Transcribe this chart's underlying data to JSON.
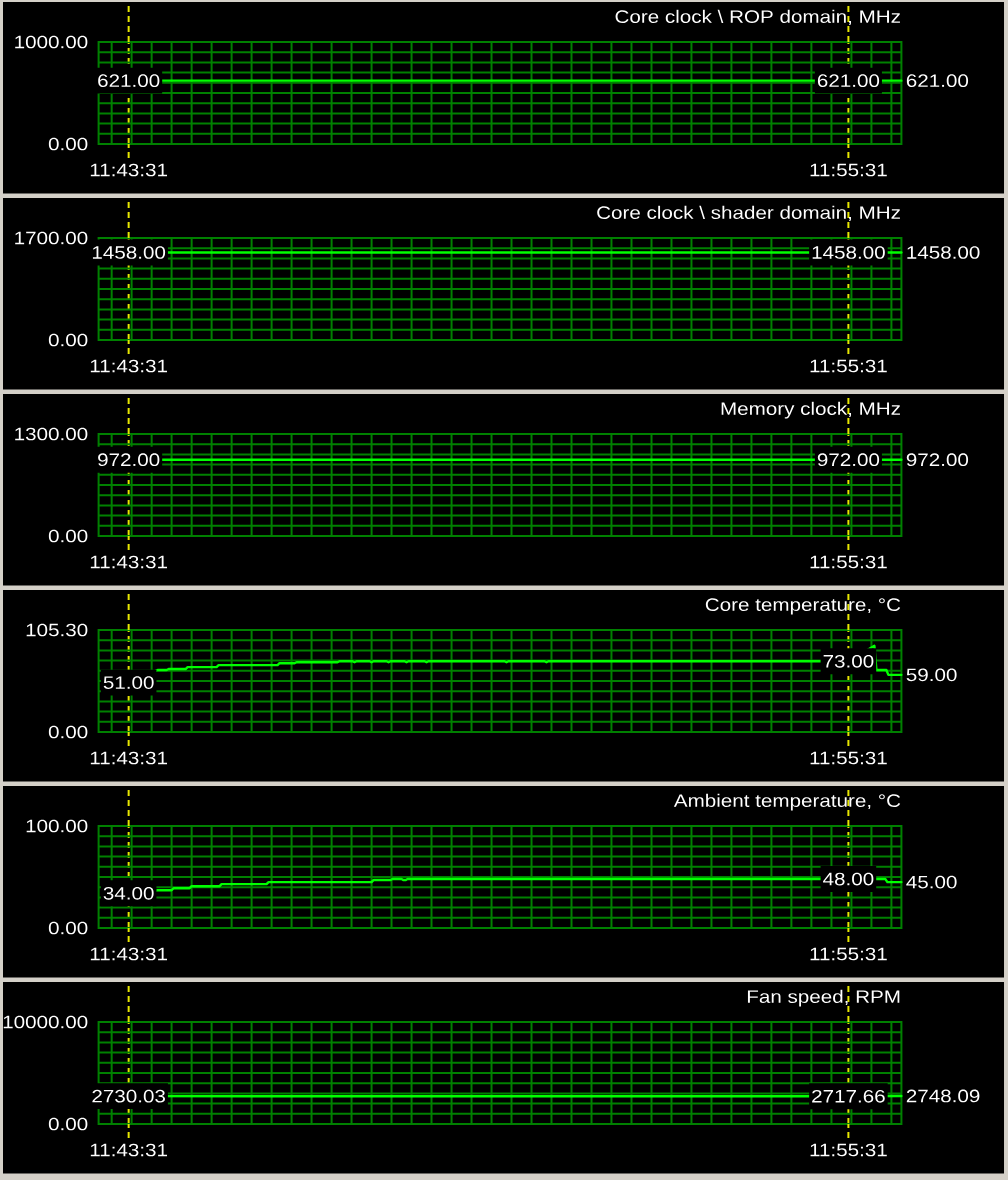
{
  "chart_data": [
    {
      "type": "line",
      "title": "Core clock \\ ROP domain, MHz",
      "xlim": [
        11.71694,
        11.94
      ],
      "ylim": [
        0,
        1000
      ],
      "grid": true,
      "xticks": [
        {
          "value": 11.72056,
          "label": null
        },
        {
          "value": 11.72528,
          "label": "11:43:31"
        },
        {
          "value": 11.72611,
          "label": null
        },
        {
          "value": 11.73167,
          "label": null
        },
        {
          "value": 11.73722,
          "label": null
        },
        {
          "value": 11.74278,
          "label": null
        },
        {
          "value": 11.74833,
          "label": null
        },
        {
          "value": 11.75389,
          "label": null
        },
        {
          "value": 11.75944,
          "label": null
        },
        {
          "value": 11.765,
          "label": null
        },
        {
          "value": 11.77056,
          "label": null
        },
        {
          "value": 11.77611,
          "label": null
        },
        {
          "value": 11.78167,
          "label": null
        },
        {
          "value": 11.78722,
          "label": null
        },
        {
          "value": 11.79278,
          "label": null
        },
        {
          "value": 11.79833,
          "label": null
        },
        {
          "value": 11.80389,
          "label": null
        },
        {
          "value": 11.80944,
          "label": null
        },
        {
          "value": 11.815,
          "label": null
        },
        {
          "value": 11.82056,
          "label": null
        },
        {
          "value": 11.82611,
          "label": null
        },
        {
          "value": 11.83167,
          "label": null
        },
        {
          "value": 11.83722,
          "label": null
        },
        {
          "value": 11.84278,
          "label": null
        },
        {
          "value": 11.84833,
          "label": null
        },
        {
          "value": 11.85389,
          "label": null
        },
        {
          "value": 11.85944,
          "label": null
        },
        {
          "value": 11.865,
          "label": null
        },
        {
          "value": 11.87056,
          "label": null
        },
        {
          "value": 11.87611,
          "label": null
        },
        {
          "value": 11.88167,
          "label": null
        },
        {
          "value": 11.88722,
          "label": null
        },
        {
          "value": 11.89278,
          "label": null
        },
        {
          "value": 11.89833,
          "label": null
        },
        {
          "value": 11.90389,
          "label": null
        },
        {
          "value": 11.90944,
          "label": null
        },
        {
          "value": 11.915,
          "label": null
        },
        {
          "value": 11.92056,
          "label": null
        },
        {
          "value": 11.92528,
          "label": "11:55:31"
        },
        {
          "value": 11.92611,
          "label": null
        },
        {
          "value": 11.93167,
          "label": null
        },
        {
          "value": 11.93722,
          "label": null
        }
      ],
      "yticks": [
        {
          "value": 0,
          "label": "0.00"
        },
        {
          "value": 100,
          "label": null
        },
        {
          "value": 200,
          "label": null
        },
        {
          "value": 300,
          "label": null
        },
        {
          "value": 400,
          "label": null
        },
        {
          "value": 500,
          "label": null
        },
        {
          "value": 600,
          "label": null
        },
        {
          "value": 700,
          "label": null
        },
        {
          "value": 800,
          "label": null
        },
        {
          "value": 900,
          "label": null
        },
        {
          "value": 1000,
          "label": "1000.00"
        }
      ],
      "series": [
        {
          "color": "#00ff00",
          "x": [
            11.72528,
            11.92528,
            11.94
          ],
          "values": [
            621,
            621,
            621
          ],
          "value_labels": [
            "621.00",
            "621.00",
            "621.00"
          ]
        }
      ]
    },
    {
      "type": "line",
      "title": "Core clock \\ shader domain, MHz",
      "xlim": [
        11.71694,
        11.94
      ],
      "ylim": [
        0,
        1700
      ],
      "grid": true,
      "xticks": [
        {
          "value": 11.72056,
          "label": null
        },
        {
          "value": 11.72528,
          "label": "11:43:31"
        },
        {
          "value": 11.72611,
          "label": null
        },
        {
          "value": 11.73167,
          "label": null
        },
        {
          "value": 11.73722,
          "label": null
        },
        {
          "value": 11.74278,
          "label": null
        },
        {
          "value": 11.74833,
          "label": null
        },
        {
          "value": 11.75389,
          "label": null
        },
        {
          "value": 11.75944,
          "label": null
        },
        {
          "value": 11.765,
          "label": null
        },
        {
          "value": 11.77056,
          "label": null
        },
        {
          "value": 11.77611,
          "label": null
        },
        {
          "value": 11.78167,
          "label": null
        },
        {
          "value": 11.78722,
          "label": null
        },
        {
          "value": 11.79278,
          "label": null
        },
        {
          "value": 11.79833,
          "label": null
        },
        {
          "value": 11.80389,
          "label": null
        },
        {
          "value": 11.80944,
          "label": null
        },
        {
          "value": 11.815,
          "label": null
        },
        {
          "value": 11.82056,
          "label": null
        },
        {
          "value": 11.82611,
          "label": null
        },
        {
          "value": 11.83167,
          "label": null
        },
        {
          "value": 11.83722,
          "label": null
        },
        {
          "value": 11.84278,
          "label": null
        },
        {
          "value": 11.84833,
          "label": null
        },
        {
          "value": 11.85389,
          "label": null
        },
        {
          "value": 11.85944,
          "label": null
        },
        {
          "value": 11.865,
          "label": null
        },
        {
          "value": 11.87056,
          "label": null
        },
        {
          "value": 11.87611,
          "label": null
        },
        {
          "value": 11.88167,
          "label": null
        },
        {
          "value": 11.88722,
          "label": null
        },
        {
          "value": 11.89278,
          "label": null
        },
        {
          "value": 11.89833,
          "label": null
        },
        {
          "value": 11.90389,
          "label": null
        },
        {
          "value": 11.90944,
          "label": null
        },
        {
          "value": 11.915,
          "label": null
        },
        {
          "value": 11.92056,
          "label": null
        },
        {
          "value": 11.92528,
          "label": "11:55:31"
        },
        {
          "value": 11.92611,
          "label": null
        },
        {
          "value": 11.93167,
          "label": null
        },
        {
          "value": 11.93722,
          "label": null
        }
      ],
      "yticks": [
        {
          "value": 0,
          "label": "0.00"
        },
        {
          "value": 170,
          "label": null
        },
        {
          "value": 340,
          "label": null
        },
        {
          "value": 510,
          "label": null
        },
        {
          "value": 680,
          "label": null
        },
        {
          "value": 850,
          "label": null
        },
        {
          "value": 1020,
          "label": null
        },
        {
          "value": 1190,
          "label": null
        },
        {
          "value": 1360,
          "label": null
        },
        {
          "value": 1530,
          "label": null
        },
        {
          "value": 1700,
          "label": "1700.00"
        }
      ],
      "series": [
        {
          "color": "#00ff00",
          "x": [
            11.72528,
            11.92528,
            11.94
          ],
          "values": [
            1458,
            1458,
            1458
          ],
          "value_labels": [
            "1458.00",
            "1458.00",
            "1458.00"
          ]
        }
      ]
    },
    {
      "type": "line",
      "title": "Memory clock, MHz",
      "xlim": [
        11.71694,
        11.94
      ],
      "ylim": [
        0,
        1300
      ],
      "grid": true,
      "xticks": [
        {
          "value": 11.72056,
          "label": null
        },
        {
          "value": 11.72528,
          "label": "11:43:31"
        },
        {
          "value": 11.72611,
          "label": null
        },
        {
          "value": 11.73167,
          "label": null
        },
        {
          "value": 11.73722,
          "label": null
        },
        {
          "value": 11.74278,
          "label": null
        },
        {
          "value": 11.74833,
          "label": null
        },
        {
          "value": 11.75389,
          "label": null
        },
        {
          "value": 11.75944,
          "label": null
        },
        {
          "value": 11.765,
          "label": null
        },
        {
          "value": 11.77056,
          "label": null
        },
        {
          "value": 11.77611,
          "label": null
        },
        {
          "value": 11.78167,
          "label": null
        },
        {
          "value": 11.78722,
          "label": null
        },
        {
          "value": 11.79278,
          "label": null
        },
        {
          "value": 11.79833,
          "label": null
        },
        {
          "value": 11.80389,
          "label": null
        },
        {
          "value": 11.80944,
          "label": null
        },
        {
          "value": 11.815,
          "label": null
        },
        {
          "value": 11.82056,
          "label": null
        },
        {
          "value": 11.82611,
          "label": null
        },
        {
          "value": 11.83167,
          "label": null
        },
        {
          "value": 11.83722,
          "label": null
        },
        {
          "value": 11.84278,
          "label": null
        },
        {
          "value": 11.84833,
          "label": null
        },
        {
          "value": 11.85389,
          "label": null
        },
        {
          "value": 11.85944,
          "label": null
        },
        {
          "value": 11.865,
          "label": null
        },
        {
          "value": 11.87056,
          "label": null
        },
        {
          "value": 11.87611,
          "label": null
        },
        {
          "value": 11.88167,
          "label": null
        },
        {
          "value": 11.88722,
          "label": null
        },
        {
          "value": 11.89278,
          "label": null
        },
        {
          "value": 11.89833,
          "label": null
        },
        {
          "value": 11.90389,
          "label": null
        },
        {
          "value": 11.90944,
          "label": null
        },
        {
          "value": 11.915,
          "label": null
        },
        {
          "value": 11.92056,
          "label": null
        },
        {
          "value": 11.92528,
          "label": "11:55:31"
        },
        {
          "value": 11.92611,
          "label": null
        },
        {
          "value": 11.93167,
          "label": null
        },
        {
          "value": 11.93722,
          "label": null
        }
      ],
      "yticks": [
        {
          "value": 0,
          "label": "0.00"
        },
        {
          "value": 130,
          "label": null
        },
        {
          "value": 260,
          "label": null
        },
        {
          "value": 390,
          "label": null
        },
        {
          "value": 520,
          "label": null
        },
        {
          "value": 650,
          "label": null
        },
        {
          "value": 780,
          "label": null
        },
        {
          "value": 910,
          "label": null
        },
        {
          "value": 1040,
          "label": null
        },
        {
          "value": 1170,
          "label": null
        },
        {
          "value": 1300,
          "label": "1300.00"
        }
      ],
      "series": [
        {
          "color": "#00ff00",
          "x": [
            11.72528,
            11.92528,
            11.94
          ],
          "values": [
            972,
            972,
            972
          ],
          "value_labels": [
            "972.00",
            "972.00",
            "972.00"
          ]
        }
      ]
    },
    {
      "type": "line",
      "title": "Core temperature, °C",
      "xlim": [
        11.71694,
        11.94
      ],
      "ylim": [
        0,
        105.3
      ],
      "grid": true,
      "xticks": [
        {
          "value": 11.72056,
          "label": null
        },
        {
          "value": 11.72528,
          "label": "11:43:31"
        },
        {
          "value": 11.72611,
          "label": null
        },
        {
          "value": 11.73167,
          "label": null
        },
        {
          "value": 11.73722,
          "label": null
        },
        {
          "value": 11.74278,
          "label": null
        },
        {
          "value": 11.74833,
          "label": null
        },
        {
          "value": 11.75389,
          "label": null
        },
        {
          "value": 11.75944,
          "label": null
        },
        {
          "value": 11.765,
          "label": null
        },
        {
          "value": 11.77056,
          "label": null
        },
        {
          "value": 11.77611,
          "label": null
        },
        {
          "value": 11.78167,
          "label": null
        },
        {
          "value": 11.78722,
          "label": null
        },
        {
          "value": 11.79278,
          "label": null
        },
        {
          "value": 11.79833,
          "label": null
        },
        {
          "value": 11.80389,
          "label": null
        },
        {
          "value": 11.80944,
          "label": null
        },
        {
          "value": 11.815,
          "label": null
        },
        {
          "value": 11.82056,
          "label": null
        },
        {
          "value": 11.82611,
          "label": null
        },
        {
          "value": 11.83167,
          "label": null
        },
        {
          "value": 11.83722,
          "label": null
        },
        {
          "value": 11.84278,
          "label": null
        },
        {
          "value": 11.84833,
          "label": null
        },
        {
          "value": 11.85389,
          "label": null
        },
        {
          "value": 11.85944,
          "label": null
        },
        {
          "value": 11.865,
          "label": null
        },
        {
          "value": 11.87056,
          "label": null
        },
        {
          "value": 11.87611,
          "label": null
        },
        {
          "value": 11.88167,
          "label": null
        },
        {
          "value": 11.88722,
          "label": null
        },
        {
          "value": 11.89278,
          "label": null
        },
        {
          "value": 11.89833,
          "label": null
        },
        {
          "value": 11.90389,
          "label": null
        },
        {
          "value": 11.90944,
          "label": null
        },
        {
          "value": 11.915,
          "label": null
        },
        {
          "value": 11.92056,
          "label": null
        },
        {
          "value": 11.92528,
          "label": "11:55:31"
        },
        {
          "value": 11.92611,
          "label": null
        },
        {
          "value": 11.93167,
          "label": null
        },
        {
          "value": 11.93722,
          "label": null
        }
      ],
      "yticks": [
        {
          "value": 0,
          "label": "0.00"
        },
        {
          "value": 10.53,
          "label": null
        },
        {
          "value": 21.06,
          "label": null
        },
        {
          "value": 31.59,
          "label": null
        },
        {
          "value": 42.12,
          "label": null
        },
        {
          "value": 52.65,
          "label": null
        },
        {
          "value": 63.18,
          "label": null
        },
        {
          "value": 73.71,
          "label": null
        },
        {
          "value": 84.24,
          "label": null
        },
        {
          "value": 94.77,
          "label": null
        },
        {
          "value": 105.3,
          "label": "105.30"
        }
      ],
      "series": [
        {
          "color": "#00ff00",
          "x": [
            11.72528,
            11.73333,
            11.73583,
            11.73639,
            11.74111,
            11.74167,
            11.74972,
            11.75028,
            11.76667,
            11.76722,
            11.77139,
            11.77194,
            11.78333,
            11.78389,
            11.7875,
            11.78806,
            11.78861,
            11.79222,
            11.79278,
            11.79333,
            11.79694,
            11.7975,
            11.79806,
            11.80194,
            11.8025,
            11.80306,
            11.8075,
            11.80806,
            11.80861,
            11.82972,
            11.83028,
            11.83083,
            11.84083,
            11.84139,
            11.84194,
            11.92528,
            11.9325,
            11.93306,
            11.93583,
            11.93639,
            11.94
          ],
          "values": [
            51,
            64,
            64,
            65,
            65,
            67,
            67,
            69,
            69,
            71,
            71,
            72,
            72,
            73,
            73,
            72,
            73,
            73,
            72,
            73,
            73,
            72,
            73,
            73,
            72,
            73,
            73,
            72,
            73,
            73,
            72,
            73,
            73,
            72,
            73,
            73,
            89,
            64,
            64,
            59,
            59
          ],
          "value_labels": [
            "51.00",
            null,
            null,
            null,
            null,
            null,
            null,
            null,
            null,
            null,
            null,
            null,
            null,
            null,
            null,
            null,
            null,
            null,
            null,
            null,
            null,
            null,
            null,
            null,
            null,
            null,
            null,
            null,
            null,
            null,
            null,
            null,
            null,
            null,
            null,
            "73.00",
            null,
            null,
            null,
            null,
            "59.00"
          ]
        }
      ]
    },
    {
      "type": "line",
      "title": "Ambient temperature, °C",
      "xlim": [
        11.71694,
        11.94
      ],
      "ylim": [
        0,
        100
      ],
      "grid": true,
      "xticks": [
        {
          "value": 11.72056,
          "label": null
        },
        {
          "value": 11.72528,
          "label": "11:43:31"
        },
        {
          "value": 11.72611,
          "label": null
        },
        {
          "value": 11.73167,
          "label": null
        },
        {
          "value": 11.73722,
          "label": null
        },
        {
          "value": 11.74278,
          "label": null
        },
        {
          "value": 11.74833,
          "label": null
        },
        {
          "value": 11.75389,
          "label": null
        },
        {
          "value": 11.75944,
          "label": null
        },
        {
          "value": 11.765,
          "label": null
        },
        {
          "value": 11.77056,
          "label": null
        },
        {
          "value": 11.77611,
          "label": null
        },
        {
          "value": 11.78167,
          "label": null
        },
        {
          "value": 11.78722,
          "label": null
        },
        {
          "value": 11.79278,
          "label": null
        },
        {
          "value": 11.79833,
          "label": null
        },
        {
          "value": 11.80389,
          "label": null
        },
        {
          "value": 11.80944,
          "label": null
        },
        {
          "value": 11.815,
          "label": null
        },
        {
          "value": 11.82056,
          "label": null
        },
        {
          "value": 11.82611,
          "label": null
        },
        {
          "value": 11.83167,
          "label": null
        },
        {
          "value": 11.83722,
          "label": null
        },
        {
          "value": 11.84278,
          "label": null
        },
        {
          "value": 11.84833,
          "label": null
        },
        {
          "value": 11.85389,
          "label": null
        },
        {
          "value": 11.85944,
          "label": null
        },
        {
          "value": 11.865,
          "label": null
        },
        {
          "value": 11.87056,
          "label": null
        },
        {
          "value": 11.87611,
          "label": null
        },
        {
          "value": 11.88167,
          "label": null
        },
        {
          "value": 11.88722,
          "label": null
        },
        {
          "value": 11.89278,
          "label": null
        },
        {
          "value": 11.89833,
          "label": null
        },
        {
          "value": 11.90389,
          "label": null
        },
        {
          "value": 11.90944,
          "label": null
        },
        {
          "value": 11.915,
          "label": null
        },
        {
          "value": 11.92056,
          "label": null
        },
        {
          "value": 11.92528,
          "label": "11:55:31"
        },
        {
          "value": 11.92611,
          "label": null
        },
        {
          "value": 11.93167,
          "label": null
        },
        {
          "value": 11.93722,
          "label": null
        }
      ],
      "yticks": [
        {
          "value": 0,
          "label": "0.00"
        },
        {
          "value": 10,
          "label": null
        },
        {
          "value": 20,
          "label": null
        },
        {
          "value": 30,
          "label": null
        },
        {
          "value": 40,
          "label": null
        },
        {
          "value": 50,
          "label": null
        },
        {
          "value": 60,
          "label": null
        },
        {
          "value": 70,
          "label": null
        },
        {
          "value": 80,
          "label": null
        },
        {
          "value": 90,
          "label": null
        },
        {
          "value": 100,
          "label": "100.00"
        }
      ],
      "series": [
        {
          "color": "#00ff00",
          "x": [
            11.72528,
            11.73333,
            11.73722,
            11.73778,
            11.74222,
            11.74278,
            11.75056,
            11.75111,
            11.76361,
            11.76417,
            11.79278,
            11.79333,
            11.79806,
            11.79861,
            11.80111,
            11.80167,
            11.80222,
            11.80278,
            11.92528,
            11.93556,
            11.93611,
            11.94
          ],
          "values": [
            34,
            37,
            37,
            39,
            39,
            41,
            41,
            43,
            43,
            45,
            45,
            47,
            47,
            48,
            48,
            47,
            47,
            48,
            48,
            48,
            45,
            45
          ],
          "value_labels": [
            "34.00",
            null,
            null,
            null,
            null,
            null,
            null,
            null,
            null,
            null,
            null,
            null,
            null,
            null,
            null,
            null,
            null,
            null,
            "48.00",
            null,
            null,
            "45.00"
          ]
        }
      ]
    },
    {
      "type": "line",
      "title": "Fan speed, RPM",
      "xlim": [
        11.71694,
        11.94
      ],
      "ylim": [
        0,
        10000
      ],
      "grid": true,
      "xticks": [
        {
          "value": 11.72056,
          "label": null
        },
        {
          "value": 11.72528,
          "label": "11:43:31"
        },
        {
          "value": 11.72611,
          "label": null
        },
        {
          "value": 11.73167,
          "label": null
        },
        {
          "value": 11.73722,
          "label": null
        },
        {
          "value": 11.74278,
          "label": null
        },
        {
          "value": 11.74833,
          "label": null
        },
        {
          "value": 11.75389,
          "label": null
        },
        {
          "value": 11.75944,
          "label": null
        },
        {
          "value": 11.765,
          "label": null
        },
        {
          "value": 11.77056,
          "label": null
        },
        {
          "value": 11.77611,
          "label": null
        },
        {
          "value": 11.78167,
          "label": null
        },
        {
          "value": 11.78722,
          "label": null
        },
        {
          "value": 11.79278,
          "label": null
        },
        {
          "value": 11.79833,
          "label": null
        },
        {
          "value": 11.80389,
          "label": null
        },
        {
          "value": 11.80944,
          "label": null
        },
        {
          "value": 11.815,
          "label": null
        },
        {
          "value": 11.82056,
          "label": null
        },
        {
          "value": 11.82611,
          "label": null
        },
        {
          "value": 11.83167,
          "label": null
        },
        {
          "value": 11.83722,
          "label": null
        },
        {
          "value": 11.84278,
          "label": null
        },
        {
          "value": 11.84833,
          "label": null
        },
        {
          "value": 11.85389,
          "label": null
        },
        {
          "value": 11.85944,
          "label": null
        },
        {
          "value": 11.865,
          "label": null
        },
        {
          "value": 11.87056,
          "label": null
        },
        {
          "value": 11.87611,
          "label": null
        },
        {
          "value": 11.88167,
          "label": null
        },
        {
          "value": 11.88722,
          "label": null
        },
        {
          "value": 11.89278,
          "label": null
        },
        {
          "value": 11.89833,
          "label": null
        },
        {
          "value": 11.90389,
          "label": null
        },
        {
          "value": 11.90944,
          "label": null
        },
        {
          "value": 11.915,
          "label": null
        },
        {
          "value": 11.92056,
          "label": null
        },
        {
          "value": 11.92528,
          "label": "11:55:31"
        },
        {
          "value": 11.92611,
          "label": null
        },
        {
          "value": 11.93167,
          "label": null
        },
        {
          "value": 11.93722,
          "label": null
        }
      ],
      "yticks": [
        {
          "value": 0,
          "label": "0.00"
        },
        {
          "value": 1000,
          "label": null
        },
        {
          "value": 2000,
          "label": null
        },
        {
          "value": 3000,
          "label": null
        },
        {
          "value": 4000,
          "label": null
        },
        {
          "value": 5000,
          "label": null
        },
        {
          "value": 6000,
          "label": null
        },
        {
          "value": 7000,
          "label": null
        },
        {
          "value": 8000,
          "label": null
        },
        {
          "value": 9000,
          "label": null
        },
        {
          "value": 10000,
          "label": "10000.00"
        }
      ],
      "series": [
        {
          "color": "#00ff00",
          "x": [
            11.72528,
            11.92528,
            11.94
          ],
          "values": [
            2730.03,
            2717.66,
            2748.09
          ],
          "value_labels": [
            "2730.03",
            "2717.66",
            "2748.09"
          ]
        }
      ]
    }
  ]
}
